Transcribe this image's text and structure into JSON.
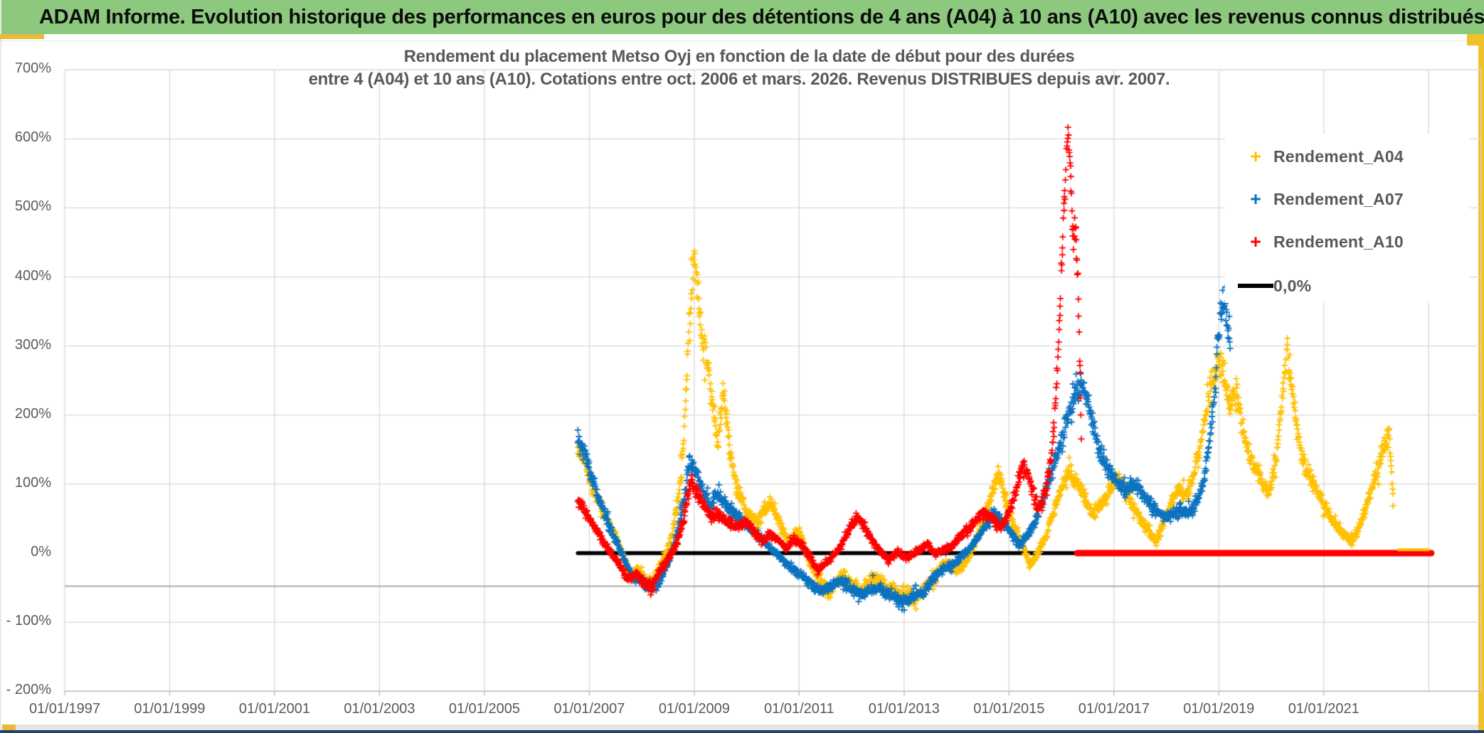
{
  "header": {
    "title": "ADAM Informe. Evolution historique des performances en euros pour des détentions de 4 ans (A04) à 10 ans (A10) avec les revenus connus distribués"
  },
  "chart": {
    "title_line1": "Rendement du placement Metso Oyj en fonction de la date de début pour des durées",
    "title_line2": "entre 4 (A04) et 10 ans (A10). Cotations entre oct. 2006 et mars. 2026. Revenus DISTRIBUES depuis avr. 2007."
  },
  "legend": {
    "items": [
      {
        "label": "Rendement_A04",
        "marker": "plus",
        "color": "#FFC000"
      },
      {
        "label": "Rendement_A07",
        "marker": "plus",
        "color": "#0B72C0"
      },
      {
        "label": "Rendement_A10",
        "marker": "plus",
        "color": "#FF0000"
      },
      {
        "label": "0,0%",
        "marker": "line",
        "color": "#000000"
      }
    ]
  },
  "chart_data": {
    "type": "scatter",
    "title": "Rendement du placement Metso Oyj en fonction de la date de début pour des durées entre 4 (A04) et 10 ans (A10). Cotations entre oct. 2006 et mars. 2026. Revenus DISTRIBUES depuis avr. 2007.",
    "x_axis": {
      "range": [
        1997,
        2024
      ],
      "tick_years": [
        1997,
        1999,
        2001,
        2003,
        2005,
        2007,
        2009,
        2011,
        2013,
        2015,
        2017,
        2019,
        2021
      ],
      "tick_labels": [
        "01/01/1997",
        "01/01/1999",
        "01/01/2001",
        "01/01/2003",
        "01/01/2005",
        "01/01/2007",
        "01/01/2009",
        "01/01/2011",
        "01/01/2013",
        "01/01/2015",
        "01/01/2017",
        "01/01/2019",
        "01/01/2021"
      ],
      "gridline_years": [
        1997,
        1999,
        2001,
        2003,
        2005,
        2007,
        2009,
        2011,
        2013,
        2015,
        2017,
        2019,
        2021,
        2023,
        2024
      ]
    },
    "y_axis": {
      "range": [
        -200,
        700
      ],
      "tick_values": [
        700,
        600,
        500,
        400,
        300,
        200,
        100,
        0,
        -100,
        -200
      ],
      "tick_labels": [
        "700%",
        "600%",
        "500%",
        "400%",
        "300%",
        "200%",
        "100%",
        "0%",
        "- 100%",
        "- 200%"
      ],
      "gridline_values": [
        700,
        600,
        500,
        400,
        300,
        200,
        100,
        -100,
        -200
      ],
      "extra_axis_line_pct": -48,
      "grid_color": "#D9D9D9",
      "extra_line_color": "#ABABAB",
      "axis_color": "#BFBFBF"
    },
    "series": [
      {
        "name": "Rendement_A04",
        "color": "#FFC000",
        "marker": "plus",
        "spread": 7,
        "keypoints": [
          [
            2006.78,
            150
          ],
          [
            2006.9,
            135
          ],
          [
            2007.0,
            110
          ],
          [
            2007.15,
            80
          ],
          [
            2007.3,
            55
          ],
          [
            2007.5,
            25
          ],
          [
            2007.65,
            -5
          ],
          [
            2007.8,
            -35
          ],
          [
            2007.95,
            -20
          ],
          [
            2008.1,
            -48
          ],
          [
            2008.25,
            -35
          ],
          [
            2008.4,
            -10
          ],
          [
            2008.55,
            15
          ],
          [
            2008.7,
            80
          ],
          [
            2008.8,
            160
          ],
          [
            2008.9,
            320
          ],
          [
            2009.0,
            435
          ],
          [
            2009.08,
            370
          ],
          [
            2009.15,
            310
          ],
          [
            2009.25,
            275
          ],
          [
            2009.35,
            215
          ],
          [
            2009.45,
            160
          ],
          [
            2009.55,
            235
          ],
          [
            2009.65,
            170
          ],
          [
            2009.8,
            95
          ],
          [
            2010.0,
            60
          ],
          [
            2010.2,
            45
          ],
          [
            2010.45,
            75
          ],
          [
            2010.65,
            40
          ],
          [
            2010.8,
            15
          ],
          [
            2011.0,
            35
          ],
          [
            2011.2,
            -15
          ],
          [
            2011.45,
            -45
          ],
          [
            2011.6,
            -58
          ],
          [
            2011.8,
            -30
          ],
          [
            2012.0,
            -45
          ],
          [
            2012.2,
            -55
          ],
          [
            2012.4,
            -35
          ],
          [
            2012.6,
            -45
          ],
          [
            2012.8,
            -55
          ],
          [
            2013.0,
            -60
          ],
          [
            2013.2,
            -68
          ],
          [
            2013.4,
            -50
          ],
          [
            2013.6,
            -35
          ],
          [
            2013.75,
            -12
          ],
          [
            2013.9,
            -20
          ],
          [
            2014.1,
            -22
          ],
          [
            2014.3,
            5
          ],
          [
            2014.5,
            45
          ],
          [
            2014.7,
            95
          ],
          [
            2014.8,
            120
          ],
          [
            2014.95,
            70
          ],
          [
            2015.1,
            40
          ],
          [
            2015.25,
            15
          ],
          [
            2015.4,
            -18
          ],
          [
            2015.55,
            0
          ],
          [
            2015.7,
            25
          ],
          [
            2015.85,
            60
          ],
          [
            2016.0,
            95
          ],
          [
            2016.15,
            120
          ],
          [
            2016.3,
            105
          ],
          [
            2016.45,
            80
          ],
          [
            2016.6,
            55
          ],
          [
            2016.75,
            70
          ],
          [
            2016.9,
            90
          ],
          [
            2017.05,
            110
          ],
          [
            2017.2,
            95
          ],
          [
            2017.35,
            70
          ],
          [
            2017.5,
            50
          ],
          [
            2017.65,
            35
          ],
          [
            2017.8,
            15
          ],
          [
            2017.95,
            45
          ],
          [
            2018.1,
            75
          ],
          [
            2018.25,
            95
          ],
          [
            2018.4,
            85
          ],
          [
            2018.55,
            120
          ],
          [
            2018.7,
            180
          ],
          [
            2018.85,
            240
          ],
          [
            2019.0,
            280
          ],
          [
            2019.1,
            255
          ],
          [
            2019.2,
            215
          ],
          [
            2019.35,
            230
          ],
          [
            2019.5,
            165
          ],
          [
            2019.65,
            130
          ],
          [
            2019.8,
            110
          ],
          [
            2019.95,
            85
          ],
          [
            2020.1,
            140
          ],
          [
            2020.2,
            220
          ],
          [
            2020.3,
            295
          ],
          [
            2020.42,
            220
          ],
          [
            2020.55,
            150
          ],
          [
            2020.7,
            115
          ],
          [
            2020.85,
            95
          ],
          [
            2021.0,
            65
          ],
          [
            2021.15,
            50
          ],
          [
            2021.3,
            35
          ],
          [
            2021.5,
            18
          ],
          [
            2021.65,
            30
          ],
          [
            2021.8,
            70
          ],
          [
            2022.0,
            110
          ],
          [
            2022.15,
            160
          ],
          [
            2022.25,
            178
          ],
          [
            2022.33,
            70
          ]
        ],
        "zero_tail": {
          "from": 2022.42,
          "to": 2023.0,
          "value": 5,
          "width": 4
        }
      },
      {
        "name": "Rendement_A07",
        "color": "#0B72C0",
        "marker": "plus",
        "spread": 6,
        "keypoints": [
          [
            2006.78,
            172
          ],
          [
            2006.9,
            150
          ],
          [
            2007.0,
            122
          ],
          [
            2007.15,
            85
          ],
          [
            2007.3,
            55
          ],
          [
            2007.45,
            28
          ],
          [
            2007.6,
            2
          ],
          [
            2007.75,
            -25
          ],
          [
            2007.9,
            -38
          ],
          [
            2008.05,
            -45
          ],
          [
            2008.2,
            -52
          ],
          [
            2008.35,
            -38
          ],
          [
            2008.5,
            -15
          ],
          [
            2008.65,
            20
          ],
          [
            2008.8,
            75
          ],
          [
            2008.92,
            135
          ],
          [
            2009.0,
            120
          ],
          [
            2009.15,
            95
          ],
          [
            2009.3,
            70
          ],
          [
            2009.45,
            85
          ],
          [
            2009.6,
            70
          ],
          [
            2009.8,
            55
          ],
          [
            2010.0,
            40
          ],
          [
            2010.25,
            22
          ],
          [
            2010.5,
            5
          ],
          [
            2010.75,
            -15
          ],
          [
            2011.0,
            -30
          ],
          [
            2011.2,
            -42
          ],
          [
            2011.4,
            -55
          ],
          [
            2011.6,
            -48
          ],
          [
            2011.8,
            -40
          ],
          [
            2012.0,
            -52
          ],
          [
            2012.2,
            -62
          ],
          [
            2012.4,
            -48
          ],
          [
            2012.6,
            -55
          ],
          [
            2012.8,
            -62
          ],
          [
            2013.0,
            -70
          ],
          [
            2013.2,
            -62
          ],
          [
            2013.4,
            -55
          ],
          [
            2013.6,
            -32
          ],
          [
            2013.8,
            -22
          ],
          [
            2014.0,
            -12
          ],
          [
            2014.2,
            2
          ],
          [
            2014.4,
            22
          ],
          [
            2014.6,
            45
          ],
          [
            2014.75,
            60
          ],
          [
            2014.9,
            42
          ],
          [
            2015.05,
            28
          ],
          [
            2015.2,
            12
          ],
          [
            2015.35,
            25
          ],
          [
            2015.5,
            45
          ],
          [
            2015.65,
            80
          ],
          [
            2015.8,
            115
          ],
          [
            2015.95,
            150
          ],
          [
            2016.1,
            195
          ],
          [
            2016.25,
            230
          ],
          [
            2016.4,
            248
          ],
          [
            2016.5,
            215
          ],
          [
            2016.65,
            170
          ],
          [
            2016.8,
            135
          ],
          [
            2016.95,
            115
          ],
          [
            2017.1,
            100
          ],
          [
            2017.25,
            92
          ],
          [
            2017.4,
            100
          ],
          [
            2017.55,
            88
          ],
          [
            2017.7,
            72
          ],
          [
            2017.85,
            60
          ],
          [
            2018.0,
            52
          ],
          [
            2018.15,
            58
          ],
          [
            2018.3,
            62
          ],
          [
            2018.45,
            58
          ],
          [
            2018.6,
            75
          ],
          [
            2018.72,
            110
          ],
          [
            2018.82,
            160
          ],
          [
            2018.92,
            230
          ],
          [
            2019.0,
            320
          ],
          [
            2019.08,
            362
          ],
          [
            2019.15,
            340
          ],
          [
            2019.22,
            312
          ]
        ]
      },
      {
        "name": "Rendement_A10",
        "color": "#FF0000",
        "marker": "plus",
        "spread": 5.5,
        "keypoints": [
          [
            2006.78,
            76
          ],
          [
            2006.9,
            62
          ],
          [
            2007.0,
            50
          ],
          [
            2007.15,
            32
          ],
          [
            2007.3,
            12
          ],
          [
            2007.45,
            -5
          ],
          [
            2007.6,
            -20
          ],
          [
            2007.75,
            -38
          ],
          [
            2007.9,
            -30
          ],
          [
            2008.05,
            -42
          ],
          [
            2008.2,
            -48
          ],
          [
            2008.35,
            -25
          ],
          [
            2008.5,
            -8
          ],
          [
            2008.65,
            12
          ],
          [
            2008.8,
            48
          ],
          [
            2008.92,
            105
          ],
          [
            2009.0,
            95
          ],
          [
            2009.15,
            75
          ],
          [
            2009.3,
            52
          ],
          [
            2009.45,
            58
          ],
          [
            2009.6,
            45
          ],
          [
            2009.8,
            40
          ],
          [
            2010.0,
            45
          ],
          [
            2010.15,
            30
          ],
          [
            2010.3,
            18
          ],
          [
            2010.45,
            28
          ],
          [
            2010.6,
            20
          ],
          [
            2010.75,
            8
          ],
          [
            2010.9,
            18
          ],
          [
            2011.05,
            12
          ],
          [
            2011.2,
            -5
          ],
          [
            2011.35,
            -25
          ],
          [
            2011.5,
            -15
          ],
          [
            2011.65,
            -5
          ],
          [
            2011.8,
            12
          ],
          [
            2011.95,
            35
          ],
          [
            2012.1,
            52
          ],
          [
            2012.25,
            38
          ],
          [
            2012.4,
            18
          ],
          [
            2012.55,
            2
          ],
          [
            2012.7,
            -10
          ],
          [
            2012.85,
            2
          ],
          [
            2013.0,
            -5
          ],
          [
            2013.15,
            -2
          ],
          [
            2013.3,
            5
          ],
          [
            2013.45,
            12
          ],
          [
            2013.6,
            -2
          ],
          [
            2013.75,
            5
          ],
          [
            2013.9,
            8
          ],
          [
            2014.05,
            22
          ],
          [
            2014.2,
            35
          ],
          [
            2014.35,
            45
          ],
          [
            2014.5,
            58
          ],
          [
            2014.65,
            52
          ],
          [
            2014.8,
            38
          ],
          [
            2014.95,
            48
          ],
          [
            2015.05,
            70
          ],
          [
            2015.15,
            95
          ],
          [
            2015.25,
            128
          ],
          [
            2015.35,
            115
          ],
          [
            2015.45,
            90
          ],
          [
            2015.55,
            62
          ],
          [
            2015.65,
            78
          ],
          [
            2015.75,
            108
          ],
          [
            2015.82,
            150
          ],
          [
            2015.88,
            210
          ],
          [
            2015.94,
            300
          ],
          [
            2016.0,
            420
          ],
          [
            2016.06,
            520
          ],
          [
            2016.12,
            618
          ],
          [
            2016.17,
            545
          ],
          [
            2016.22,
            465
          ],
          [
            2016.28,
            470
          ],
          [
            2016.33,
            340
          ],
          [
            2016.38,
            160
          ]
        ],
        "zero_tail": {
          "from": 2016.3,
          "to": 2023.05,
          "value": 0,
          "width": 9
        }
      },
      {
        "name": "0,0%",
        "type": "line",
        "color": "#000000",
        "from": 2006.78,
        "to": 2016.3,
        "value": 0,
        "width": 5.5
      }
    ]
  }
}
